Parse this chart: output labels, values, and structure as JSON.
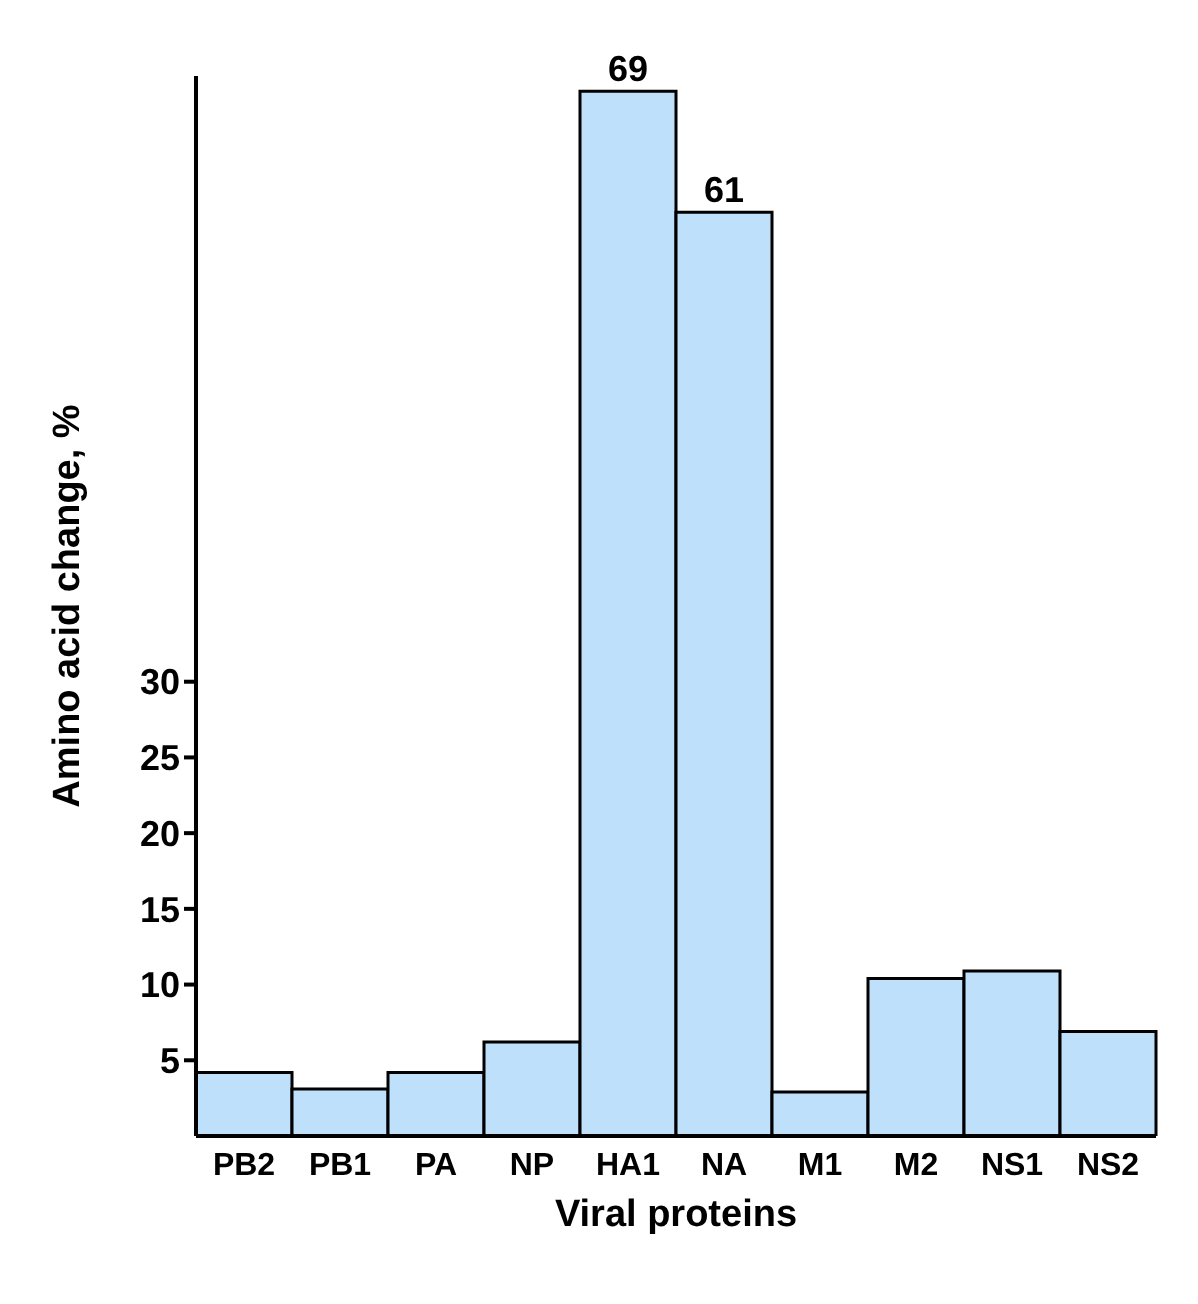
{
  "chart_data": {
    "type": "bar",
    "xlabel": "Viral proteins",
    "ylabel": "Amino acid change, %",
    "categories": [
      "PB2",
      "PB1",
      "PA",
      "NP",
      "HA1",
      "NA",
      "M1",
      "M2",
      "NS1",
      "NS2"
    ],
    "values": [
      4.2,
      3.1,
      4.2,
      6.2,
      69,
      61,
      2.9,
      10.4,
      10.9,
      6.9
    ],
    "value_labels": [
      null,
      null,
      null,
      null,
      "69",
      "61",
      null,
      null,
      null,
      null
    ],
    "color": "#bfe0fa",
    "ylim": [
      0,
      70
    ],
    "yticks": [
      5,
      10,
      15,
      20,
      25,
      30
    ],
    "grid": false
  }
}
